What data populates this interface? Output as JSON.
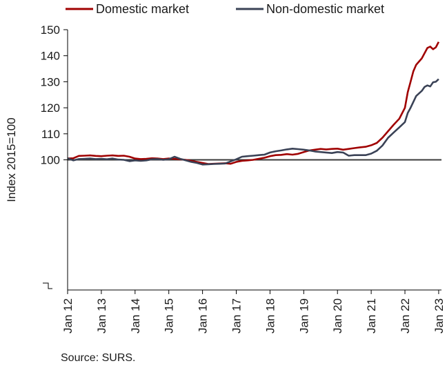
{
  "chart_data": {
    "type": "line",
    "ylabel": "Index 2015=100",
    "ylim": [
      50,
      150
    ],
    "y_ticks": [
      100,
      110,
      120,
      130,
      140,
      150
    ],
    "x_ticks": [
      "Jan 12",
      "Jan 13",
      "Jan 14",
      "Jan 15",
      "Jan 16",
      "Jan 17",
      "Jan 18",
      "Jan 19",
      "Jan 20",
      "Jan 21",
      "Jan 22",
      "Jan 23"
    ],
    "reference_line": 100,
    "legend_position": "top",
    "source": "Source: SURS.",
    "series": [
      {
        "name": "Domestic market",
        "color": "#a00000",
        "points": [
          [
            "2012-01",
            100.5
          ],
          [
            "2012-03",
            100.6
          ],
          [
            "2012-05",
            101.5
          ],
          [
            "2012-07",
            101.6
          ],
          [
            "2012-09",
            101.7
          ],
          [
            "2012-11",
            101.5
          ],
          [
            "2013-01",
            101.4
          ],
          [
            "2013-03",
            101.6
          ],
          [
            "2013-05",
            101.7
          ],
          [
            "2013-07",
            101.5
          ],
          [
            "2013-09",
            101.6
          ],
          [
            "2013-11",
            101.2
          ],
          [
            "2014-01",
            100.5
          ],
          [
            "2014-03",
            100.3
          ],
          [
            "2014-05",
            100.4
          ],
          [
            "2014-07",
            100.6
          ],
          [
            "2014-09",
            100.5
          ],
          [
            "2014-11",
            100.3
          ],
          [
            "2015-01",
            100.5
          ],
          [
            "2015-03",
            100.4
          ],
          [
            "2015-05",
            100.2
          ],
          [
            "2015-07",
            100.0
          ],
          [
            "2015-09",
            99.6
          ],
          [
            "2015-11",
            99.2
          ],
          [
            "2016-01",
            98.8
          ],
          [
            "2016-03",
            98.4
          ],
          [
            "2016-05",
            98.5
          ],
          [
            "2016-07",
            98.6
          ],
          [
            "2016-09",
            98.7
          ],
          [
            "2016-11",
            98.5
          ],
          [
            "2017-01",
            99.2
          ],
          [
            "2017-03",
            99.6
          ],
          [
            "2017-05",
            99.8
          ],
          [
            "2017-07",
            100.0
          ],
          [
            "2017-09",
            100.4
          ],
          [
            "2017-11",
            100.8
          ],
          [
            "2018-01",
            101.4
          ],
          [
            "2018-03",
            101.8
          ],
          [
            "2018-05",
            101.9
          ],
          [
            "2018-07",
            102.2
          ],
          [
            "2018-09",
            102.0
          ],
          [
            "2018-11",
            102.3
          ],
          [
            "2019-01",
            103.0
          ],
          [
            "2019-03",
            103.6
          ],
          [
            "2019-05",
            103.9
          ],
          [
            "2019-07",
            104.2
          ],
          [
            "2019-09",
            104.0
          ],
          [
            "2019-11",
            104.2
          ],
          [
            "2020-01",
            104.3
          ],
          [
            "2020-03",
            103.9
          ],
          [
            "2020-05",
            104.2
          ],
          [
            "2020-07",
            104.5
          ],
          [
            "2020-09",
            104.8
          ],
          [
            "2020-11",
            105.0
          ],
          [
            "2021-01",
            105.6
          ],
          [
            "2021-03",
            106.5
          ],
          [
            "2021-05",
            108.5
          ],
          [
            "2021-07",
            111.0
          ],
          [
            "2021-09",
            113.5
          ],
          [
            "2021-11",
            115.8
          ],
          [
            "2022-01",
            120.0
          ],
          [
            "2022-02",
            126.0
          ],
          [
            "2022-03",
            130.0
          ],
          [
            "2022-04",
            134.0
          ],
          [
            "2022-05",
            136.5
          ],
          [
            "2022-07",
            139.0
          ],
          [
            "2022-09",
            143.0
          ],
          [
            "2022-10",
            143.5
          ],
          [
            "2022-11",
            142.5
          ],
          [
            "2022-12",
            143.2
          ],
          [
            "2023-01",
            145.3
          ]
        ]
      },
      {
        "name": "Non-domestic market",
        "color": "#3a4256",
        "points": [
          [
            "2012-01",
            100.6
          ],
          [
            "2012-03",
            99.8
          ],
          [
            "2012-05",
            100.3
          ],
          [
            "2012-07",
            100.4
          ],
          [
            "2012-09",
            100.5
          ],
          [
            "2012-11",
            100.3
          ],
          [
            "2013-01",
            100.4
          ],
          [
            "2013-03",
            100.2
          ],
          [
            "2013-05",
            100.5
          ],
          [
            "2013-07",
            100.1
          ],
          [
            "2013-09",
            100.0
          ],
          [
            "2013-11",
            99.5
          ],
          [
            "2014-01",
            99.8
          ],
          [
            "2014-03",
            99.6
          ],
          [
            "2014-05",
            99.8
          ],
          [
            "2014-07",
            100.2
          ],
          [
            "2014-09",
            100.3
          ],
          [
            "2014-11",
            100.0
          ],
          [
            "2015-01",
            100.2
          ],
          [
            "2015-03",
            101.2
          ],
          [
            "2015-05",
            100.4
          ],
          [
            "2015-07",
            99.8
          ],
          [
            "2015-09",
            99.2
          ],
          [
            "2015-11",
            98.8
          ],
          [
            "2016-01",
            98.2
          ],
          [
            "2016-03",
            98.3
          ],
          [
            "2016-05",
            98.4
          ],
          [
            "2016-07",
            98.5
          ],
          [
            "2016-09",
            98.6
          ],
          [
            "2016-11",
            99.4
          ],
          [
            "2017-01",
            100.2
          ],
          [
            "2017-03",
            101.2
          ],
          [
            "2017-05",
            101.4
          ],
          [
            "2017-07",
            101.6
          ],
          [
            "2017-09",
            101.8
          ],
          [
            "2017-11",
            102.0
          ],
          [
            "2018-01",
            102.8
          ],
          [
            "2018-03",
            103.3
          ],
          [
            "2018-05",
            103.6
          ],
          [
            "2018-07",
            104.0
          ],
          [
            "2018-09",
            104.3
          ],
          [
            "2018-11",
            104.1
          ],
          [
            "2019-01",
            103.9
          ],
          [
            "2019-03",
            103.6
          ],
          [
            "2019-05",
            103.2
          ],
          [
            "2019-07",
            103.0
          ],
          [
            "2019-09",
            102.8
          ],
          [
            "2019-11",
            102.6
          ],
          [
            "2020-01",
            103.0
          ],
          [
            "2020-03",
            102.8
          ],
          [
            "2020-05",
            101.6
          ],
          [
            "2020-07",
            101.8
          ],
          [
            "2020-09",
            101.8
          ],
          [
            "2020-11",
            101.8
          ],
          [
            "2021-01",
            102.4
          ],
          [
            "2021-03",
            103.5
          ],
          [
            "2021-05",
            105.5
          ],
          [
            "2021-07",
            108.5
          ],
          [
            "2021-09",
            110.5
          ],
          [
            "2021-11",
            112.5
          ],
          [
            "2022-01",
            114.5
          ],
          [
            "2022-02",
            118.0
          ],
          [
            "2022-03",
            120.0
          ],
          [
            "2022-05",
            124.5
          ],
          [
            "2022-07",
            126.5
          ],
          [
            "2022-08",
            128.0
          ],
          [
            "2022-09",
            128.6
          ],
          [
            "2022-10",
            128.2
          ],
          [
            "2022-11",
            129.8
          ],
          [
            "2022-12",
            130.0
          ],
          [
            "2023-01",
            131.0
          ]
        ]
      }
    ]
  }
}
